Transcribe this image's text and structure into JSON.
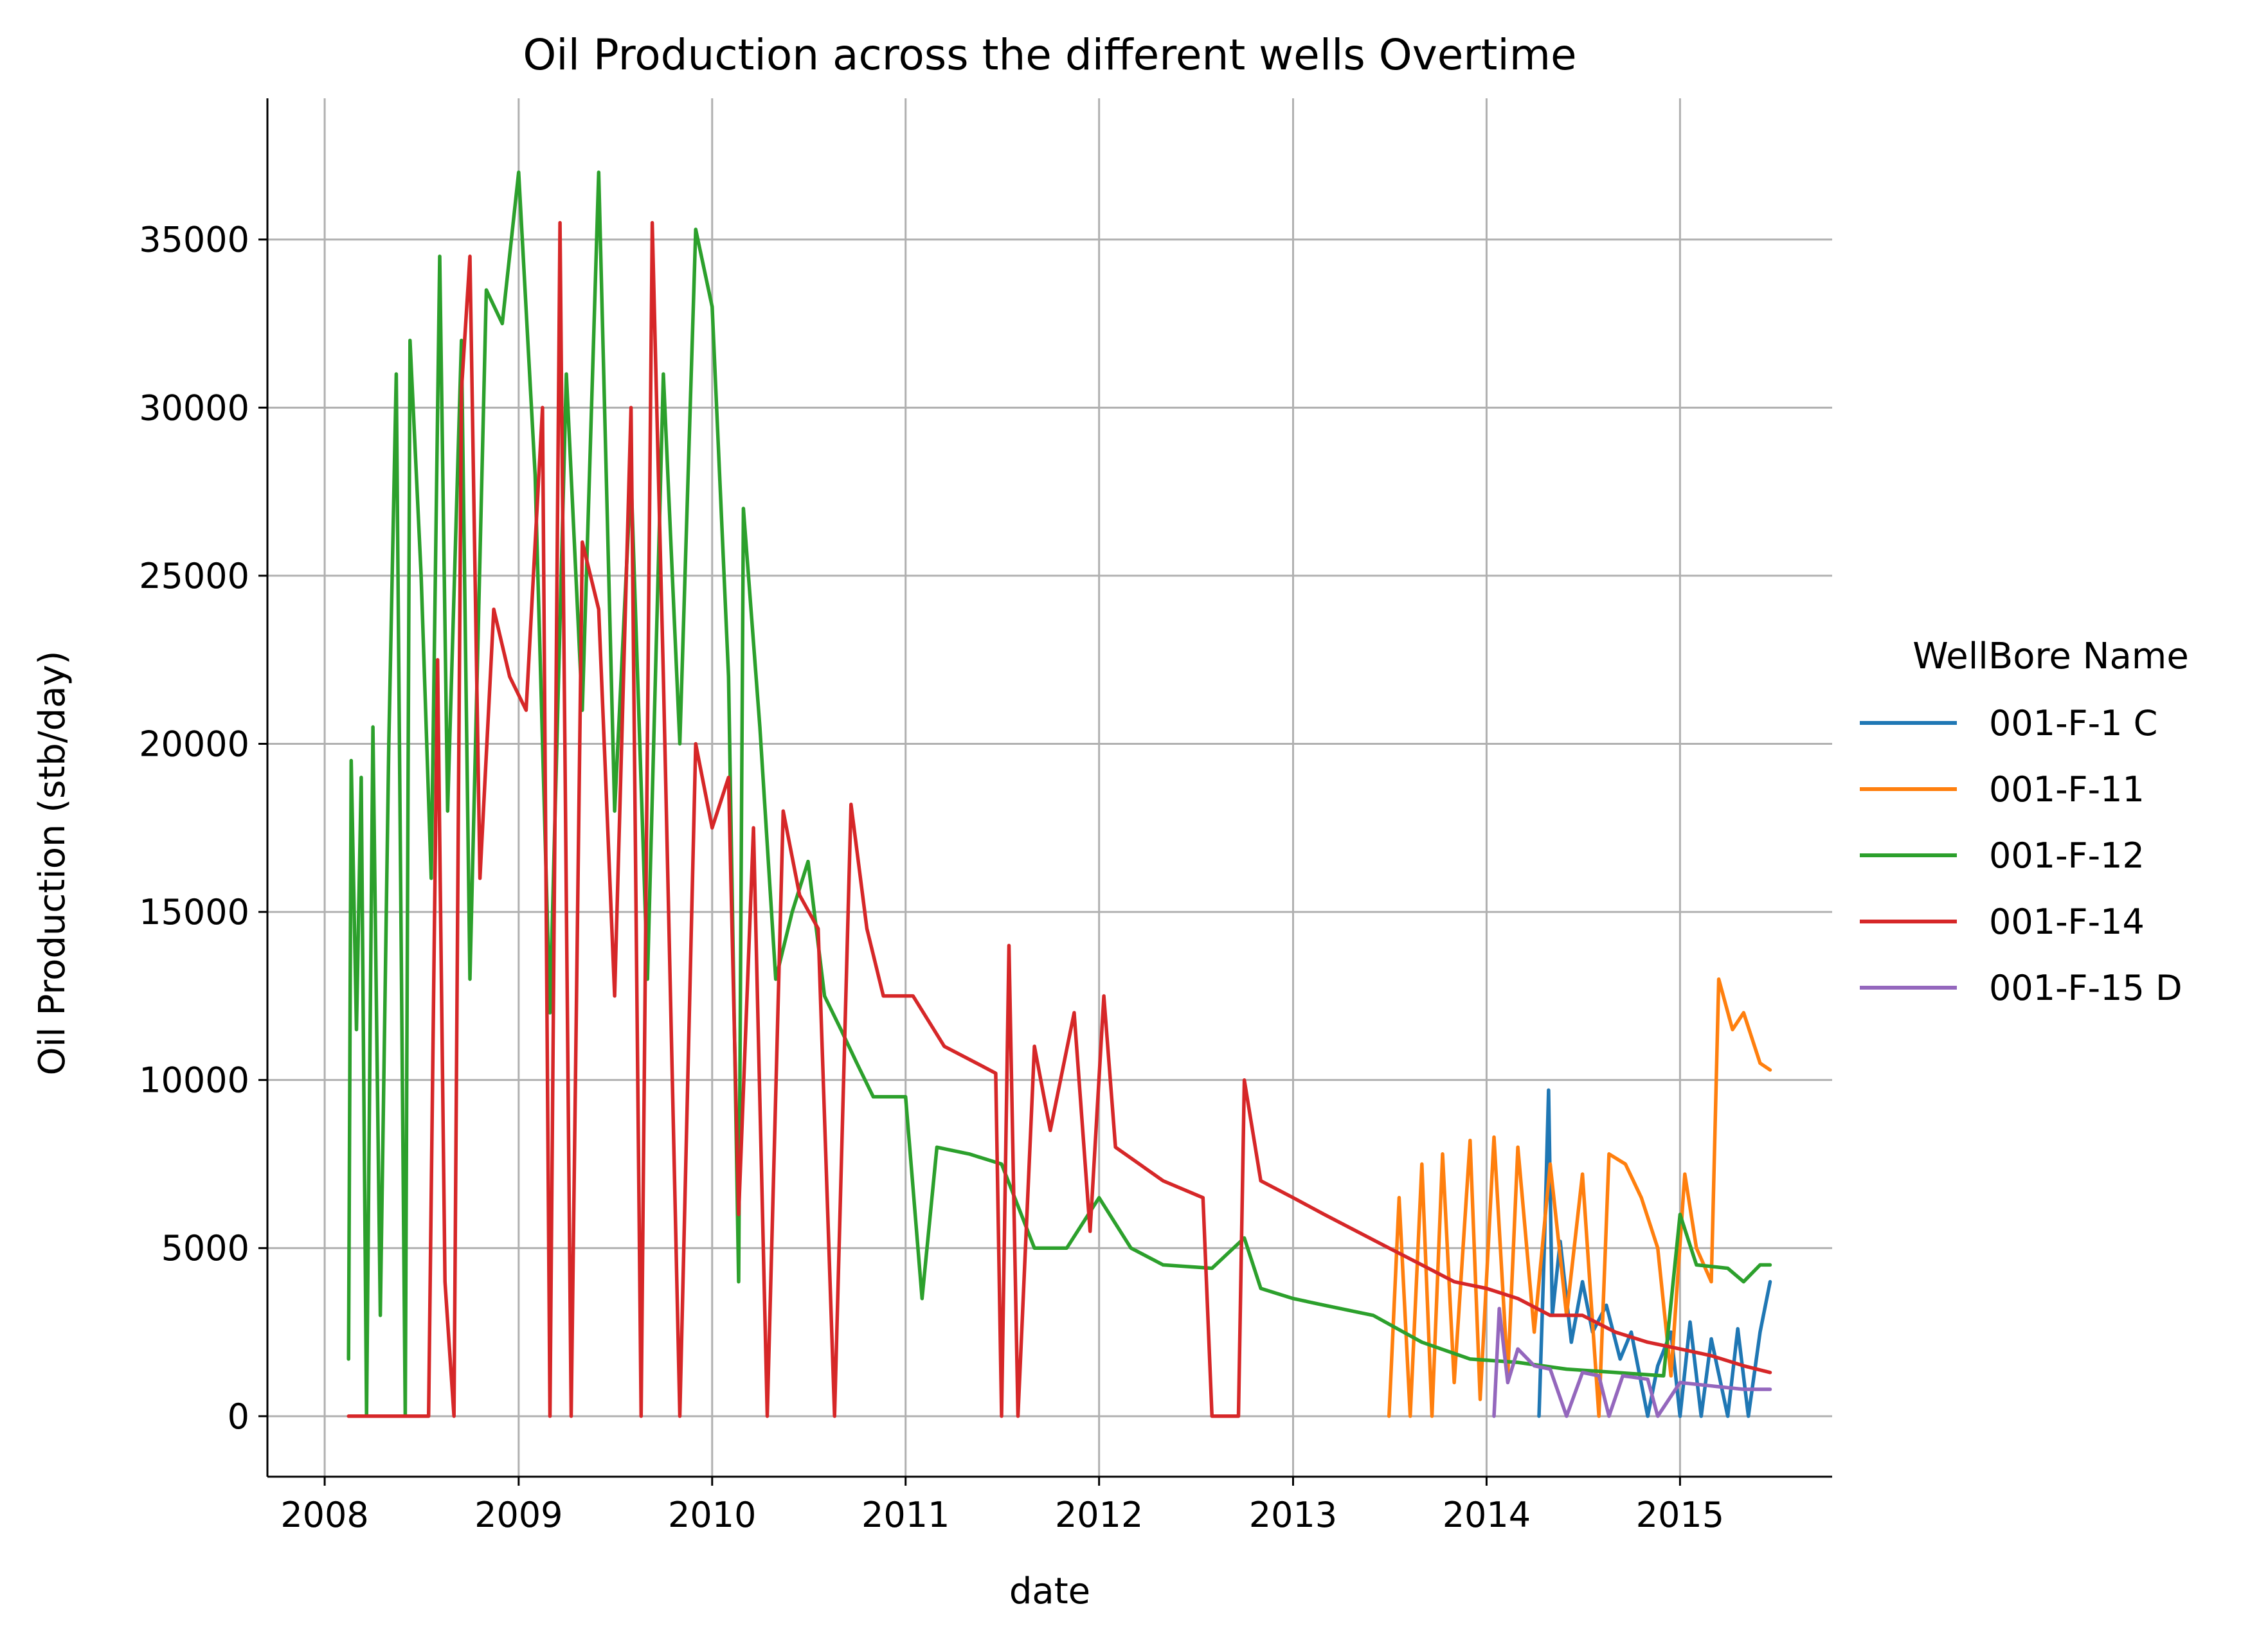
{
  "chart_data": {
    "type": "line",
    "title": "Oil Production across the different wells Overtime",
    "xlabel": "date",
    "ylabel": "Oil Production (stb/day)",
    "xlim": [
      "2007-09-15",
      "2015-10-15"
    ],
    "ylim": [
      -1800,
      39200
    ],
    "x_ticks": [
      "2008",
      "2009",
      "2010",
      "2011",
      "2012",
      "2013",
      "2014",
      "2015"
    ],
    "y_ticks": [
      0,
      5000,
      10000,
      15000,
      20000,
      25000,
      30000,
      35000
    ],
    "grid": true,
    "legend": {
      "title": "WellBore Name",
      "placement": "right"
    },
    "series": [
      {
        "name": "001-F-1 C",
        "color": "#1f77b4",
        "points": [
          [
            "2014-04-10",
            0
          ],
          [
            "2014-04-20",
            5000
          ],
          [
            "2014-04-28",
            9700
          ],
          [
            "2014-05-05",
            3000
          ],
          [
            "2014-05-20",
            5200
          ],
          [
            "2014-06-10",
            2200
          ],
          [
            "2014-07-01",
            4000
          ],
          [
            "2014-07-20",
            2500
          ],
          [
            "2014-08-15",
            3300
          ],
          [
            "2014-09-10",
            1700
          ],
          [
            "2014-10-01",
            2500
          ],
          [
            "2014-11-01",
            0
          ],
          [
            "2014-11-20",
            1500
          ],
          [
            "2014-12-15",
            2500
          ],
          [
            "2015-01-01",
            0
          ],
          [
            "2015-01-20",
            2800
          ],
          [
            "2015-02-10",
            0
          ],
          [
            "2015-03-01",
            2300
          ],
          [
            "2015-04-01",
            0
          ],
          [
            "2015-04-20",
            2600
          ],
          [
            "2015-05-10",
            0
          ],
          [
            "2015-06-01",
            2500
          ],
          [
            "2015-06-20",
            4000
          ]
        ]
      },
      {
        "name": "001-F-11",
        "color": "#ff7f0e",
        "points": [
          [
            "2013-07-01",
            0
          ],
          [
            "2013-07-20",
            6500
          ],
          [
            "2013-08-10",
            0
          ],
          [
            "2013-09-01",
            7500
          ],
          [
            "2013-09-20",
            0
          ],
          [
            "2013-10-10",
            7800
          ],
          [
            "2013-11-01",
            1000
          ],
          [
            "2013-12-01",
            8200
          ],
          [
            "2013-12-20",
            500
          ],
          [
            "2014-01-15",
            8300
          ],
          [
            "2014-02-10",
            1200
          ],
          [
            "2014-03-01",
            8000
          ],
          [
            "2014-04-01",
            2500
          ],
          [
            "2014-05-01",
            7500
          ],
          [
            "2014-06-01",
            3000
          ],
          [
            "2014-07-01",
            7200
          ],
          [
            "2014-08-01",
            0
          ],
          [
            "2014-08-20",
            7800
          ],
          [
            "2014-09-20",
            7500
          ],
          [
            "2014-10-20",
            6500
          ],
          [
            "2014-11-20",
            5000
          ],
          [
            "2014-12-15",
            1200
          ],
          [
            "2015-01-10",
            7200
          ],
          [
            "2015-02-01",
            5000
          ],
          [
            "2015-03-01",
            4000
          ],
          [
            "2015-03-15",
            13000
          ],
          [
            "2015-04-10",
            11500
          ],
          [
            "2015-05-01",
            12000
          ],
          [
            "2015-06-01",
            10500
          ],
          [
            "2015-06-20",
            10300
          ]
        ]
      },
      {
        "name": "001-F-12",
        "color": "#2ca02c",
        "points": [
          [
            "2008-02-15",
            1700
          ],
          [
            "2008-02-20",
            19500
          ],
          [
            "2008-03-01",
            11500
          ],
          [
            "2008-03-10",
            19000
          ],
          [
            "2008-03-20",
            0
          ],
          [
            "2008-04-01",
            20500
          ],
          [
            "2008-04-15",
            3000
          ],
          [
            "2008-05-01",
            20000
          ],
          [
            "2008-05-15",
            31000
          ],
          [
            "2008-06-01",
            0
          ],
          [
            "2008-06-10",
            32000
          ],
          [
            "2008-07-01",
            25000
          ],
          [
            "2008-07-20",
            16000
          ],
          [
            "2008-08-05",
            34500
          ],
          [
            "2008-08-20",
            18000
          ],
          [
            "2008-09-15",
            32000
          ],
          [
            "2008-10-01",
            13000
          ],
          [
            "2008-11-01",
            33500
          ],
          [
            "2008-12-01",
            32500
          ],
          [
            "2009-01-01",
            37000
          ],
          [
            "2009-02-01",
            28000
          ],
          [
            "2009-03-01",
            12000
          ],
          [
            "2009-04-01",
            31000
          ],
          [
            "2009-05-01",
            21000
          ],
          [
            "2009-06-01",
            37000
          ],
          [
            "2009-07-01",
            18000
          ],
          [
            "2009-08-01",
            28000
          ],
          [
            "2009-09-01",
            13000
          ],
          [
            "2009-10-01",
            31000
          ],
          [
            "2009-11-01",
            20000
          ],
          [
            "2009-12-01",
            35300
          ],
          [
            "2010-01-01",
            33000
          ],
          [
            "2010-02-01",
            22000
          ],
          [
            "2010-02-20",
            4000
          ],
          [
            "2010-03-01",
            27000
          ],
          [
            "2010-04-01",
            20500
          ],
          [
            "2010-05-01",
            13000
          ],
          [
            "2010-06-01",
            15000
          ],
          [
            "2010-07-01",
            16500
          ],
          [
            "2010-08-01",
            12500
          ],
          [
            "2010-09-01",
            11500
          ],
          [
            "2010-10-01",
            10500
          ],
          [
            "2010-11-01",
            9500
          ],
          [
            "2011-01-01",
            9500
          ],
          [
            "2011-02-01",
            3500
          ],
          [
            "2011-03-01",
            8000
          ],
          [
            "2011-05-01",
            7800
          ],
          [
            "2011-07-01",
            7500
          ],
          [
            "2011-09-01",
            5000
          ],
          [
            "2011-11-01",
            5000
          ],
          [
            "2012-01-01",
            6500
          ],
          [
            "2012-03-01",
            5000
          ],
          [
            "2012-05-01",
            4500
          ],
          [
            "2012-08-01",
            4400
          ],
          [
            "2012-10-01",
            5300
          ],
          [
            "2012-11-01",
            3800
          ],
          [
            "2013-01-01",
            3500
          ],
          [
            "2013-03-01",
            3300
          ],
          [
            "2013-06-01",
            3000
          ],
          [
            "2013-09-01",
            2200
          ],
          [
            "2013-12-01",
            1700
          ],
          [
            "2014-03-01",
            1600
          ],
          [
            "2014-06-01",
            1400
          ],
          [
            "2014-09-01",
            1300
          ],
          [
            "2014-12-01",
            1200
          ],
          [
            "2015-01-01",
            6000
          ],
          [
            "2015-02-01",
            4500
          ],
          [
            "2015-04-01",
            4400
          ],
          [
            "2015-05-01",
            4000
          ],
          [
            "2015-06-01",
            4500
          ],
          [
            "2015-06-20",
            4500
          ]
        ]
      },
      {
        "name": "001-F-14",
        "color": "#d62728",
        "points": [
          [
            "2008-02-15",
            0
          ],
          [
            "2008-07-15",
            0
          ],
          [
            "2008-08-01",
            22500
          ],
          [
            "2008-08-15",
            4000
          ],
          [
            "2008-09-01",
            0
          ],
          [
            "2008-09-15",
            30500
          ],
          [
            "2008-10-01",
            34500
          ],
          [
            "2008-10-20",
            16000
          ],
          [
            "2008-11-15",
            24000
          ],
          [
            "2008-12-15",
            22000
          ],
          [
            "2009-01-15",
            21000
          ],
          [
            "2009-02-15",
            30000
          ],
          [
            "2009-03-01",
            0
          ],
          [
            "2009-03-20",
            35500
          ],
          [
            "2009-04-10",
            0
          ],
          [
            "2009-05-01",
            26000
          ],
          [
            "2009-06-01",
            24000
          ],
          [
            "2009-07-01",
            12500
          ],
          [
            "2009-08-01",
            30000
          ],
          [
            "2009-08-20",
            0
          ],
          [
            "2009-09-10",
            35500
          ],
          [
            "2009-10-01",
            22000
          ],
          [
            "2009-11-01",
            0
          ],
          [
            "2009-12-01",
            20000
          ],
          [
            "2010-01-01",
            17500
          ],
          [
            "2010-02-01",
            19000
          ],
          [
            "2010-02-20",
            6000
          ],
          [
            "2010-03-20",
            17500
          ],
          [
            "2010-04-15",
            0
          ],
          [
            "2010-05-15",
            18000
          ],
          [
            "2010-06-15",
            15500
          ],
          [
            "2010-07-20",
            14500
          ],
          [
            "2010-08-20",
            0
          ],
          [
            "2010-09-20",
            18200
          ],
          [
            "2010-10-20",
            14500
          ],
          [
            "2010-11-20",
            12500
          ],
          [
            "2011-01-15",
            12500
          ],
          [
            "2011-03-15",
            11000
          ],
          [
            "2011-05-15",
            10500
          ],
          [
            "2011-06-20",
            10200
          ],
          [
            "2011-07-01",
            0
          ],
          [
            "2011-07-15",
            14000
          ],
          [
            "2011-08-01",
            0
          ],
          [
            "2011-09-01",
            11000
          ],
          [
            "2011-10-01",
            8500
          ],
          [
            "2011-11-15",
            12000
          ],
          [
            "2011-12-15",
            5500
          ],
          [
            "2012-01-10",
            12500
          ],
          [
            "2012-02-01",
            8000
          ],
          [
            "2012-05-01",
            7000
          ],
          [
            "2012-07-15",
            6500
          ],
          [
            "2012-08-01",
            0
          ],
          [
            "2012-09-20",
            0
          ],
          [
            "2012-10-01",
            10000
          ],
          [
            "2012-11-01",
            7000
          ],
          [
            "2013-01-01",
            6500
          ],
          [
            "2013-03-01",
            6000
          ],
          [
            "2013-05-01",
            5500
          ],
          [
            "2013-07-01",
            5000
          ],
          [
            "2013-09-01",
            4500
          ],
          [
            "2013-11-01",
            4000
          ],
          [
            "2014-01-01",
            3800
          ],
          [
            "2014-03-01",
            3500
          ],
          [
            "2014-05-01",
            3000
          ],
          [
            "2014-07-01",
            3000
          ],
          [
            "2014-09-01",
            2500
          ],
          [
            "2014-11-01",
            2200
          ],
          [
            "2015-01-01",
            2000
          ],
          [
            "2015-03-01",
            1800
          ],
          [
            "2015-05-01",
            1500
          ],
          [
            "2015-06-20",
            1300
          ]
        ]
      },
      {
        "name": "001-F-15 D",
        "color": "#9467bd",
        "points": [
          [
            "2014-01-15",
            0
          ],
          [
            "2014-01-25",
            3200
          ],
          [
            "2014-02-10",
            1000
          ],
          [
            "2014-03-01",
            2000
          ],
          [
            "2014-04-01",
            1500
          ],
          [
            "2014-05-01",
            1400
          ],
          [
            "2014-06-01",
            0
          ],
          [
            "2014-07-01",
            1300
          ],
          [
            "2014-08-01",
            1200
          ],
          [
            "2014-08-20",
            0
          ],
          [
            "2014-09-15",
            1200
          ],
          [
            "2014-11-01",
            1100
          ],
          [
            "2014-11-20",
            0
          ],
          [
            "2015-01-01",
            1000
          ],
          [
            "2015-03-01",
            900
          ],
          [
            "2015-05-01",
            800
          ],
          [
            "2015-06-20",
            800
          ]
        ]
      }
    ]
  }
}
